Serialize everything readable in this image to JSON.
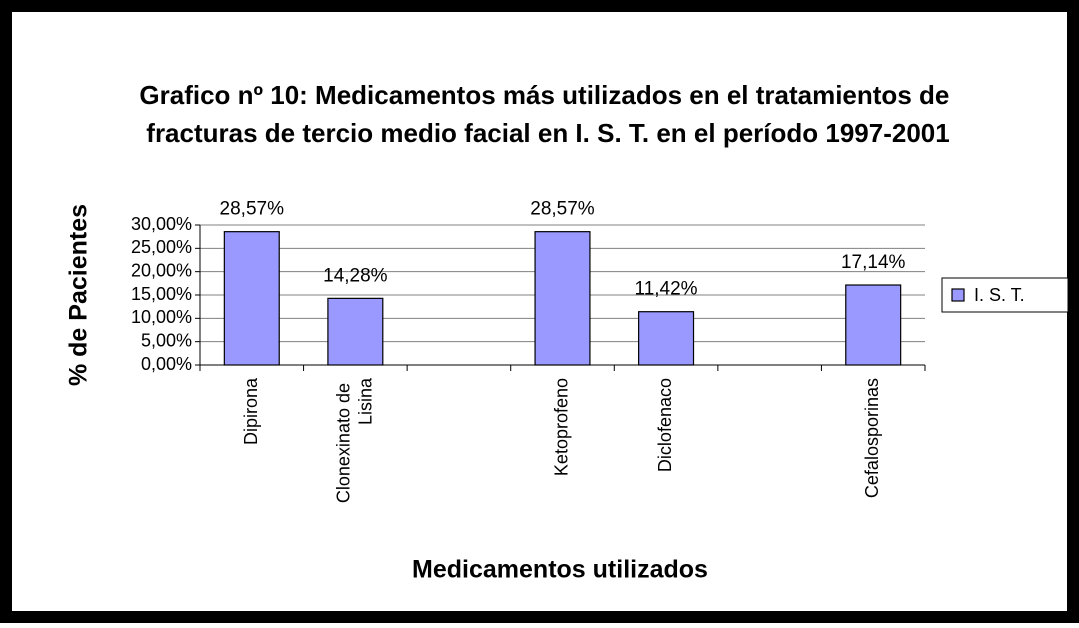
{
  "chart_data": {
    "type": "bar",
    "title": "Grafico nº 10: Medicamentos más utilizados en el tratamientos de fracturas de tercio medio facial en I. S. T. en el período 1997-2001",
    "y_label": "% de Pacientes",
    "x_label": "Medicamentos utilizados",
    "categories": [
      "Dipirona",
      "Clonexinato de Lisina",
      null,
      "Ketoprofeno",
      "Diclofenaco",
      null,
      "Cefalosporinas"
    ],
    "series": [
      {
        "name": "I. S. T.",
        "color": "#9999ff",
        "values": [
          28.57,
          14.28,
          null,
          28.57,
          11.42,
          null,
          17.14
        ],
        "value_labels": [
          "28,57%",
          "14,28%",
          null,
          "28,57%",
          "11,42%",
          null,
          "17,14%"
        ]
      }
    ],
    "ylim": [
      0,
      30
    ],
    "yticks": [
      {
        "value": 0,
        "label": "0,00%"
      },
      {
        "value": 5,
        "label": "5,00%"
      },
      {
        "value": 10,
        "label": "10,00%"
      },
      {
        "value": 15,
        "label": "15,00%"
      },
      {
        "value": 20,
        "label": "20,00%"
      },
      {
        "value": 25,
        "label": "25,00%"
      },
      {
        "value": 30,
        "label": "30,00%"
      }
    ],
    "grid": true,
    "legend": "right"
  }
}
